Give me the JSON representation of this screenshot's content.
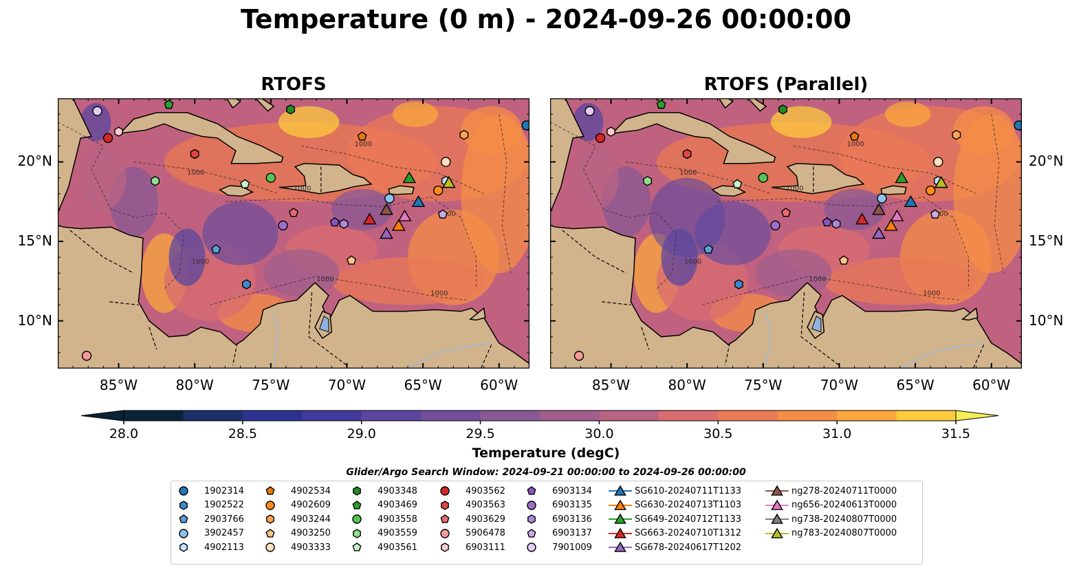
{
  "title": "Temperature (0 m) - 2024-09-26 00:00:00",
  "panels": [
    {
      "title": "RTOFS"
    },
    {
      "title": "RTOFS (Parallel)"
    }
  ],
  "map": {
    "lon_range": [
      -89,
      -58
    ],
    "lat_range": [
      7,
      24
    ],
    "lon_ticks": [
      "85°W",
      "80°W",
      "75°W",
      "70°W",
      "65°W",
      "60°W"
    ],
    "lat_ticks": [
      "20°N",
      "15°N",
      "10°N"
    ],
    "land_color": "#d2b48c",
    "contour_label": "1000"
  },
  "colorbar": {
    "label": "Temperature (degC)",
    "ticks": [
      "28.0",
      "28.5",
      "29.0",
      "29.5",
      "30.0",
      "30.5",
      "31.0",
      "31.5"
    ],
    "range": [
      28.0,
      31.5
    ],
    "colors": [
      "#0a2336",
      "#1d2f68",
      "#2c3290",
      "#433a9c",
      "#5b479f",
      "#724f9a",
      "#8a5894",
      "#a05f8d",
      "#b86483",
      "#d96d6f",
      "#eb7a56",
      "#f68d46",
      "#fba73b",
      "#fdcb3c",
      "#f3ee56"
    ]
  },
  "search_window": "Glider/Argo Search Window: 2024-09-21 00:00:00 to 2024-09-26 00:00:00",
  "legend": [
    {
      "label": "1902314",
      "marker": "circle",
      "color": "#1f77b4"
    },
    {
      "label": "1902522",
      "marker": "hexagon",
      "color": "#3d8ac8"
    },
    {
      "label": "2903766",
      "marker": "pentagon",
      "color": "#5a9fd8"
    },
    {
      "label": "3902457",
      "marker": "circle",
      "color": "#8ec3ea"
    },
    {
      "label": "4902113",
      "marker": "hexagon",
      "color": "#c3e1f7"
    },
    {
      "label": "4902534",
      "marker": "pentagon",
      "color": "#e8780e"
    },
    {
      "label": "4902609",
      "marker": "circle",
      "color": "#ff8c1a"
    },
    {
      "label": "4903244",
      "marker": "hexagon",
      "color": "#ffa450"
    },
    {
      "label": "4903250",
      "marker": "pentagon",
      "color": "#ffc48a"
    },
    {
      "label": "4903333",
      "marker": "circle",
      "color": "#ffe0bf"
    },
    {
      "label": "4903348",
      "marker": "hexagon",
      "color": "#238b21"
    },
    {
      "label": "4903469",
      "marker": "pentagon",
      "color": "#2ca02c"
    },
    {
      "label": "4903558",
      "marker": "circle",
      "color": "#56c456"
    },
    {
      "label": "4903559",
      "marker": "hexagon",
      "color": "#8fe08f"
    },
    {
      "label": "4903561",
      "marker": "pentagon",
      "color": "#c8f3c8"
    },
    {
      "label": "4903562",
      "marker": "circle",
      "color": "#d62728"
    },
    {
      "label": "4903563",
      "marker": "hexagon",
      "color": "#e04545"
    },
    {
      "label": "4903629",
      "marker": "pentagon",
      "color": "#e86a6f"
    },
    {
      "label": "5906478",
      "marker": "circle",
      "color": "#f59a9a"
    },
    {
      "label": "6903111",
      "marker": "hexagon",
      "color": "#fbc9c9"
    },
    {
      "label": "6903134",
      "marker": "pentagon",
      "color": "#8a55bf"
    },
    {
      "label": "6903135",
      "marker": "circle",
      "color": "#9b6fcb"
    },
    {
      "label": "6903136",
      "marker": "hexagon",
      "color": "#ad8ad7"
    },
    {
      "label": "6903137",
      "marker": "pentagon",
      "color": "#c8abe6"
    },
    {
      "label": "7901009",
      "marker": "circle",
      "color": "#e2ccf5"
    },
    {
      "label": "SG610-20240711T1133",
      "marker": "triangle",
      "color": "#1f77b4"
    },
    {
      "label": "SG630-20240713T1103",
      "marker": "triangle",
      "color": "#ff7f0e"
    },
    {
      "label": "SG649-20240712T1133",
      "marker": "triangle",
      "color": "#2ca02c"
    },
    {
      "label": "SG663-20240710T1312",
      "marker": "triangle",
      "color": "#d62728"
    },
    {
      "label": "SG678-20240617T1202",
      "marker": "triangle",
      "color": "#9467bd"
    },
    {
      "label": "ng278-20240711T0000",
      "marker": "triangle",
      "color": "#8c564b"
    },
    {
      "label": "ng656-20240613T0000",
      "marker": "triangle",
      "color": "#e377c2"
    },
    {
      "label": "ng738-20240807T0000",
      "marker": "triangle",
      "color": "#7f7f7f"
    },
    {
      "label": "ng783-20240807T0000",
      "marker": "triangle",
      "color": "#bcbd22"
    }
  ],
  "observations": [
    {
      "id": "1902314",
      "lon": -58.2,
      "lat": 22.3
    },
    {
      "id": "1902522",
      "lon": -76.6,
      "lat": 12.3
    },
    {
      "id": "2903766",
      "lon": -78.6,
      "lat": 14.5
    },
    {
      "id": "3902457",
      "lon": -67.2,
      "lat": 17.7
    },
    {
      "id": "4902113",
      "lon": -63.5,
      "lat": 18.8
    },
    {
      "id": "4902534",
      "lon": -69.0,
      "lat": 21.6
    },
    {
      "id": "4902609",
      "lon": -64.0,
      "lat": 18.2
    },
    {
      "id": "4903244",
      "lon": -62.3,
      "lat": 21.7
    },
    {
      "id": "4903250",
      "lon": -69.7,
      "lat": 13.8
    },
    {
      "id": "4903333",
      "lon": -63.5,
      "lat": 20.0
    },
    {
      "id": "4903348",
      "lon": -73.7,
      "lat": 23.3
    },
    {
      "id": "4903469",
      "lon": -81.7,
      "lat": 23.6
    },
    {
      "id": "4903558",
      "lon": -75.0,
      "lat": 19.0
    },
    {
      "id": "4903559",
      "lon": -82.6,
      "lat": 18.8
    },
    {
      "id": "4903561",
      "lon": -76.7,
      "lat": 18.6
    },
    {
      "id": "4903562",
      "lon": -85.7,
      "lat": 21.5
    },
    {
      "id": "4903563",
      "lon": -80.0,
      "lat": 20.5
    },
    {
      "id": "4903629",
      "lon": -73.5,
      "lat": 16.8
    },
    {
      "id": "5906478",
      "lon": -87.1,
      "lat": 7.8
    },
    {
      "id": "6903111",
      "lon": -85.0,
      "lat": 21.9
    },
    {
      "id": "6903134",
      "lon": -70.8,
      "lat": 16.2
    },
    {
      "id": "6903135",
      "lon": -74.2,
      "lat": 16.0
    },
    {
      "id": "6903136",
      "lon": -70.2,
      "lat": 16.1
    },
    {
      "id": "6903137",
      "lon": -63.7,
      "lat": 16.7
    },
    {
      "id": "7901009",
      "lon": -86.4,
      "lat": 23.2
    },
    {
      "id": "SG610-20240711T1133",
      "lon": -65.3,
      "lat": 17.5
    },
    {
      "id": "SG630-20240713T1103",
      "lon": -66.6,
      "lat": 16.0
    },
    {
      "id": "SG649-20240712T1133",
      "lon": -65.9,
      "lat": 19.0
    },
    {
      "id": "SG663-20240710T1312",
      "lon": -68.5,
      "lat": 16.4
    },
    {
      "id": "SG678-20240617T1202",
      "lon": -67.4,
      "lat": 15.5
    },
    {
      "id": "ng278-20240711T0000",
      "lon": -67.4,
      "lat": 17.0
    },
    {
      "id": "ng656-20240613T0000",
      "lon": -66.2,
      "lat": 16.6
    },
    {
      "id": "ng738-20240807T0000",
      "lon": -63.3,
      "lat": 18.7
    },
    {
      "id": "ng783-20240807T0000",
      "lon": -63.3,
      "lat": 18.7
    }
  ]
}
